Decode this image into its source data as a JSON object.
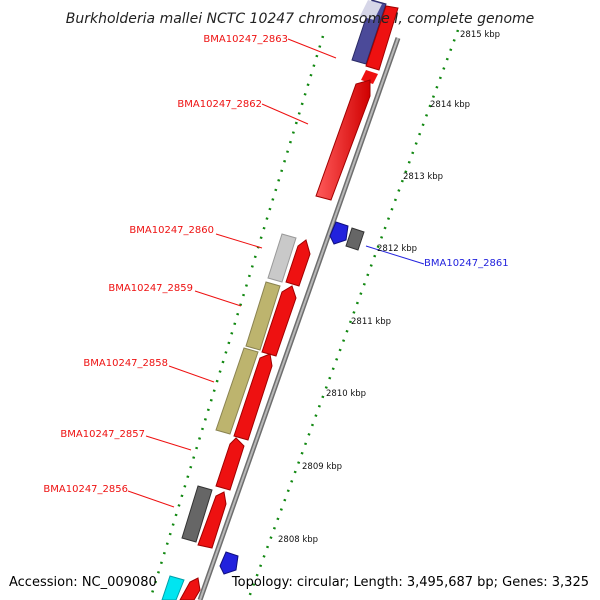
{
  "title": "Burkholderia mallei NCTC 10247 chromosome I, complete genome",
  "footer": {
    "accession": "Accession: NC_009080",
    "summary": "Topology: circular; Length: 3,495,687 bp; Genes: 3,325"
  },
  "colors": {
    "forward_cds": "#ee1111",
    "reverse_cds": "#2222dd",
    "gray_feature": "#666666",
    "light_feature": "#c9c9d8",
    "olive_feature": "#bdb46e",
    "navy_feature": "#4b4a99",
    "cyan_feature": "#00e5f0",
    "backbone": "#8a8a8a",
    "tick": "#118811"
  },
  "ruler": [
    "2815 kbp",
    "2814 kbp",
    "2813 kbp",
    "2812 kbp",
    "2811 kbp",
    "2810 kbp",
    "2809 kbp",
    "2808 kbp"
  ],
  "gene_labels": [
    {
      "name": "BMA10247_2863",
      "strand": "forward"
    },
    {
      "name": "BMA10247_2862",
      "strand": "forward"
    },
    {
      "name": "BMA10247_2860",
      "strand": "forward"
    },
    {
      "name": "BMA10247_2859",
      "strand": "forward"
    },
    {
      "name": "BMA10247_2858",
      "strand": "forward"
    },
    {
      "name": "BMA10247_2857",
      "strand": "forward"
    },
    {
      "name": "BMA10247_2856",
      "strand": "forward"
    },
    {
      "name": "BMA10247_2861",
      "strand": "reverse"
    }
  ]
}
